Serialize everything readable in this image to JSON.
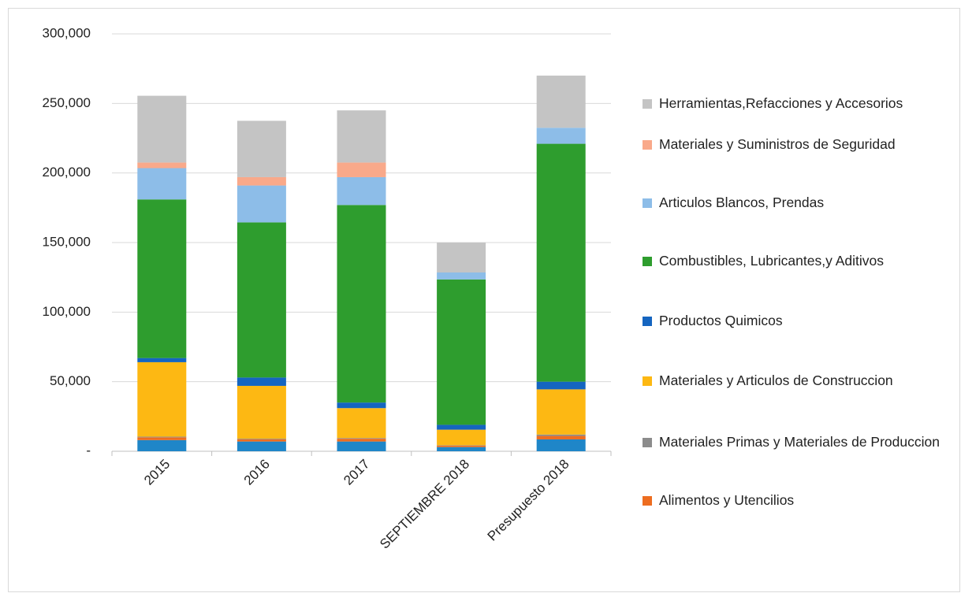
{
  "chart_data": {
    "type": "stacked_bar",
    "categories": [
      "2015",
      "2016",
      "2017",
      "SEPTIEMBRE 2018",
      "Presupuesto 2018"
    ],
    "series": [
      {
        "color": "#1f86c8",
        "values": [
          8000,
          7000,
          7000,
          3000,
          8500
        ]
      },
      {
        "name": "Alimentos y Utencilios",
        "color": "#ed6d20",
        "values": [
          2000,
          1500,
          2000,
          1000,
          2500
        ]
      },
      {
        "name": "Materiales Primas y Materiales de Produccion",
        "color": "#8c8c8c",
        "values": [
          500,
          500,
          500,
          300,
          1000
        ]
      },
      {
        "name": "Materiales y Articulos de Construccion",
        "color": "#fdb813",
        "values": [
          53500,
          38000,
          21500,
          11200,
          32500
        ]
      },
      {
        "name": "Productos Quimicos",
        "color": "#1565c0",
        "values": [
          3000,
          6000,
          4000,
          3500,
          5500
        ]
      },
      {
        "name": "Combustibles, Lubricantes,y Aditivos",
        "color": "#2e9d2e",
        "values": [
          114000,
          111500,
          142000,
          104500,
          171000
        ]
      },
      {
        "name": "Articulos Blancos, Prendas",
        "color": "#8dbde8",
        "values": [
          22500,
          26500,
          20000,
          5000,
          11500
        ]
      },
      {
        "name": "Materiales y Suministros de Seguridad",
        "color": "#f9a98a",
        "values": [
          4000,
          6000,
          10500,
          0,
          0
        ]
      },
      {
        "name": "Herramientas,Refacciones y Accesorios",
        "color": "#c4c4c4",
        "values": [
          48000,
          40500,
          37500,
          21500,
          37500
        ]
      }
    ],
    "ylim": [
      0,
      300000
    ],
    "yticks": [
      {
        "value": 0,
        "label": "-"
      },
      {
        "value": 50000,
        "label": "50,000"
      },
      {
        "value": 100000,
        "label": "100,000"
      },
      {
        "value": 150000,
        "label": "150,000"
      },
      {
        "value": 200000,
        "label": "200,000"
      },
      {
        "value": 250000,
        "label": "250,000"
      },
      {
        "value": 300000,
        "label": "300,000"
      }
    ],
    "grid": true
  }
}
